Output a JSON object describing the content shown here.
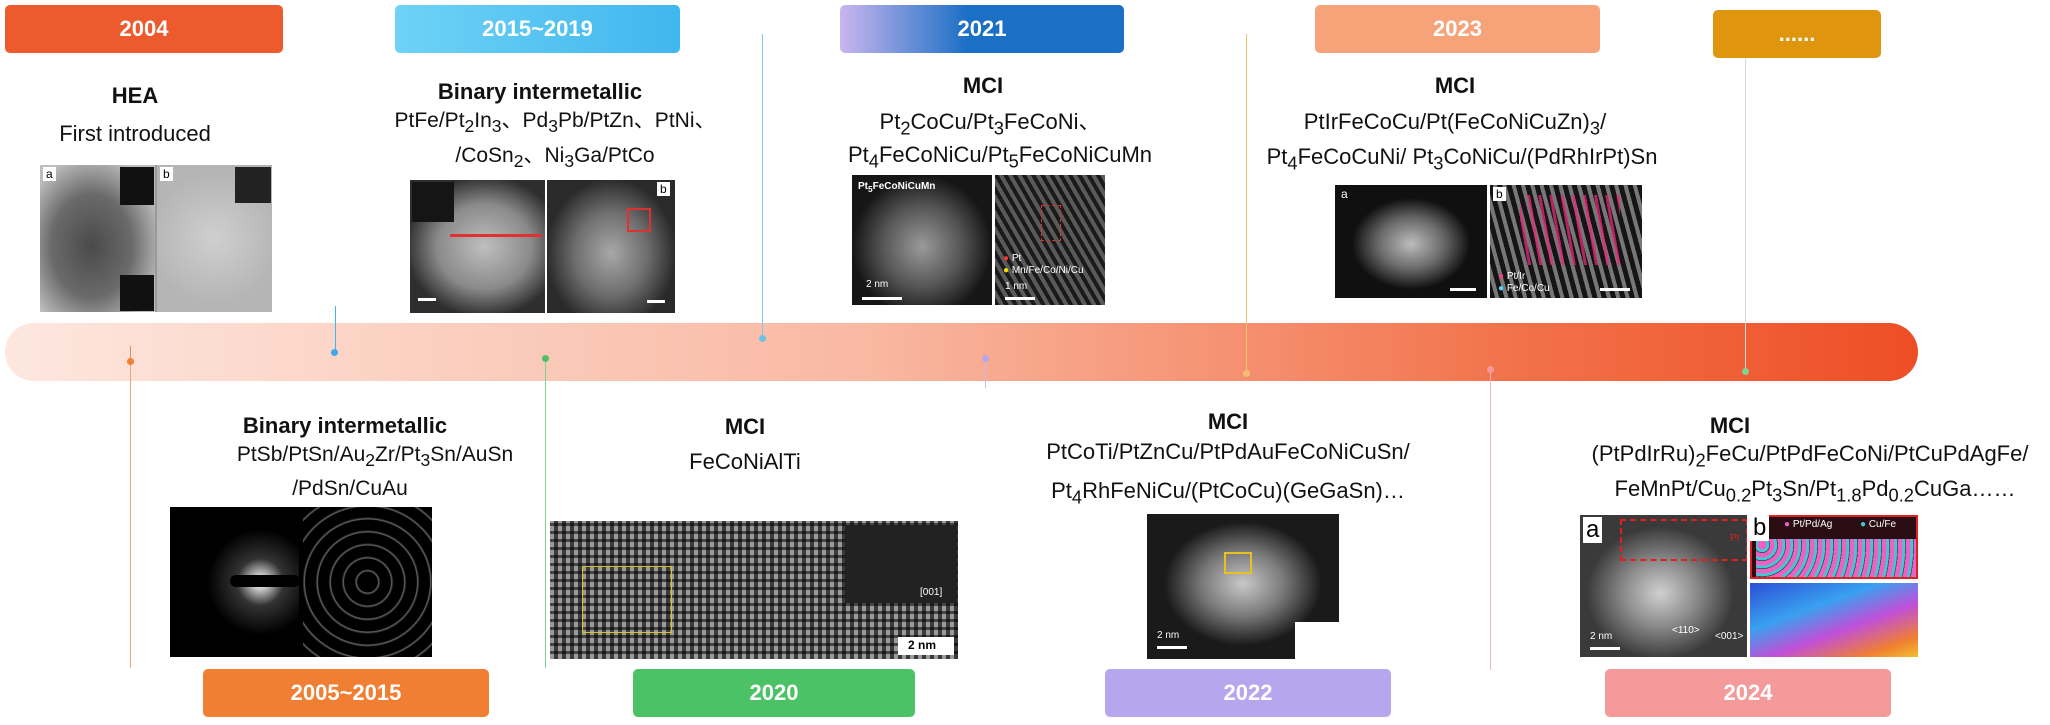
{
  "timeline": {
    "years_top": [
      {
        "label": "2004",
        "color": "#ec5a2d"
      },
      {
        "label": "2015~2019",
        "color": "#3fb7ee"
      },
      {
        "label": "2021",
        "color": "#1b6fc4"
      },
      {
        "label": "2023",
        "color": "#f7a37a"
      },
      {
        "label": "......",
        "color": "#e0950f"
      }
    ],
    "years_bottom": [
      {
        "label": "2005~2015",
        "color": "#f07f33"
      },
      {
        "label": "2020",
        "color": "#4cc266"
      },
      {
        "label": "2022",
        "color": "#b6a6ee"
      },
      {
        "label": "2024",
        "color": "#f59a9a"
      }
    ]
  },
  "events": {
    "e2004": {
      "title": "HEA",
      "line1": "First introduced"
    },
    "e2015_2019": {
      "title": "Binary intermetallic"
    },
    "e2021": {
      "title": "MCI"
    },
    "e2023": {
      "title": "MCI"
    },
    "e2005_2015": {
      "title": "Binary intermetallic",
      "line2": "/PdSn/CuAu"
    },
    "e2020": {
      "title": "MCI",
      "line1": "FeCoNiAlTi"
    },
    "e2022": {
      "title": "MCI"
    },
    "e2024": {
      "title": "MCI"
    }
  },
  "image_labels": {
    "a": "a",
    "b": "b",
    "scale_2nm": "2 nm",
    "scale_1nm": "1 nm",
    "zone_001": "[001]",
    "legend_pt": "Pt",
    "legend_mn": "Mn/Fe/Co/Ni/Cu",
    "legend_ptir": "Pt/Ir",
    "legend_fecocu": "Fe/Co/Cu",
    "legend_ptpdag": "Pt/Pd/Ag",
    "legend_cufe": "Cu/Fe",
    "pt_label": "Pt",
    "dir_110": "<110>",
    "dir_001": "<001>"
  }
}
